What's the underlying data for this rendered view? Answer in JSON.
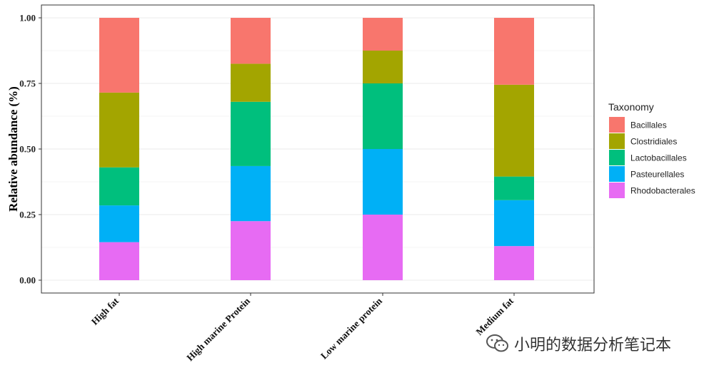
{
  "chart_data": {
    "type": "bar",
    "stacked": true,
    "categories": [
      "High fat",
      "High marine Protein",
      "Low marine protein",
      "Medium fat"
    ],
    "series": [
      {
        "name": "Rhodobacterales",
        "color": "#E76BF3",
        "values": [
          0.145,
          0.225,
          0.25,
          0.13
        ]
      },
      {
        "name": "Pasteurellales",
        "color": "#00B0F6",
        "values": [
          0.14,
          0.21,
          0.25,
          0.175
        ]
      },
      {
        "name": "Lactobacillales",
        "color": "#00BF7D",
        "values": [
          0.145,
          0.245,
          0.25,
          0.09
        ]
      },
      {
        "name": "Clostridiales",
        "color": "#A3A500",
        "values": [
          0.285,
          0.145,
          0.125,
          0.35
        ]
      },
      {
        "name": "Bacillales",
        "color": "#F8766D",
        "values": [
          0.285,
          0.175,
          0.125,
          0.255
        ]
      }
    ],
    "legend_order": [
      "Bacillales",
      "Clostridiales",
      "Lactobacillales",
      "Pasteurellales",
      "Rhodobacterales"
    ],
    "yticks": [
      "0.00",
      "0.25",
      "0.50",
      "0.75",
      "1.00"
    ],
    "ylim": [
      0,
      1
    ],
    "ylabel": "Relative abundance (%)",
    "xlabel": "",
    "legend_title": "Taxonomy",
    "legend_position": "right",
    "grid": true
  },
  "watermark": {
    "text": "小明的数据分析笔记本",
    "icon": "wechat-icon"
  }
}
